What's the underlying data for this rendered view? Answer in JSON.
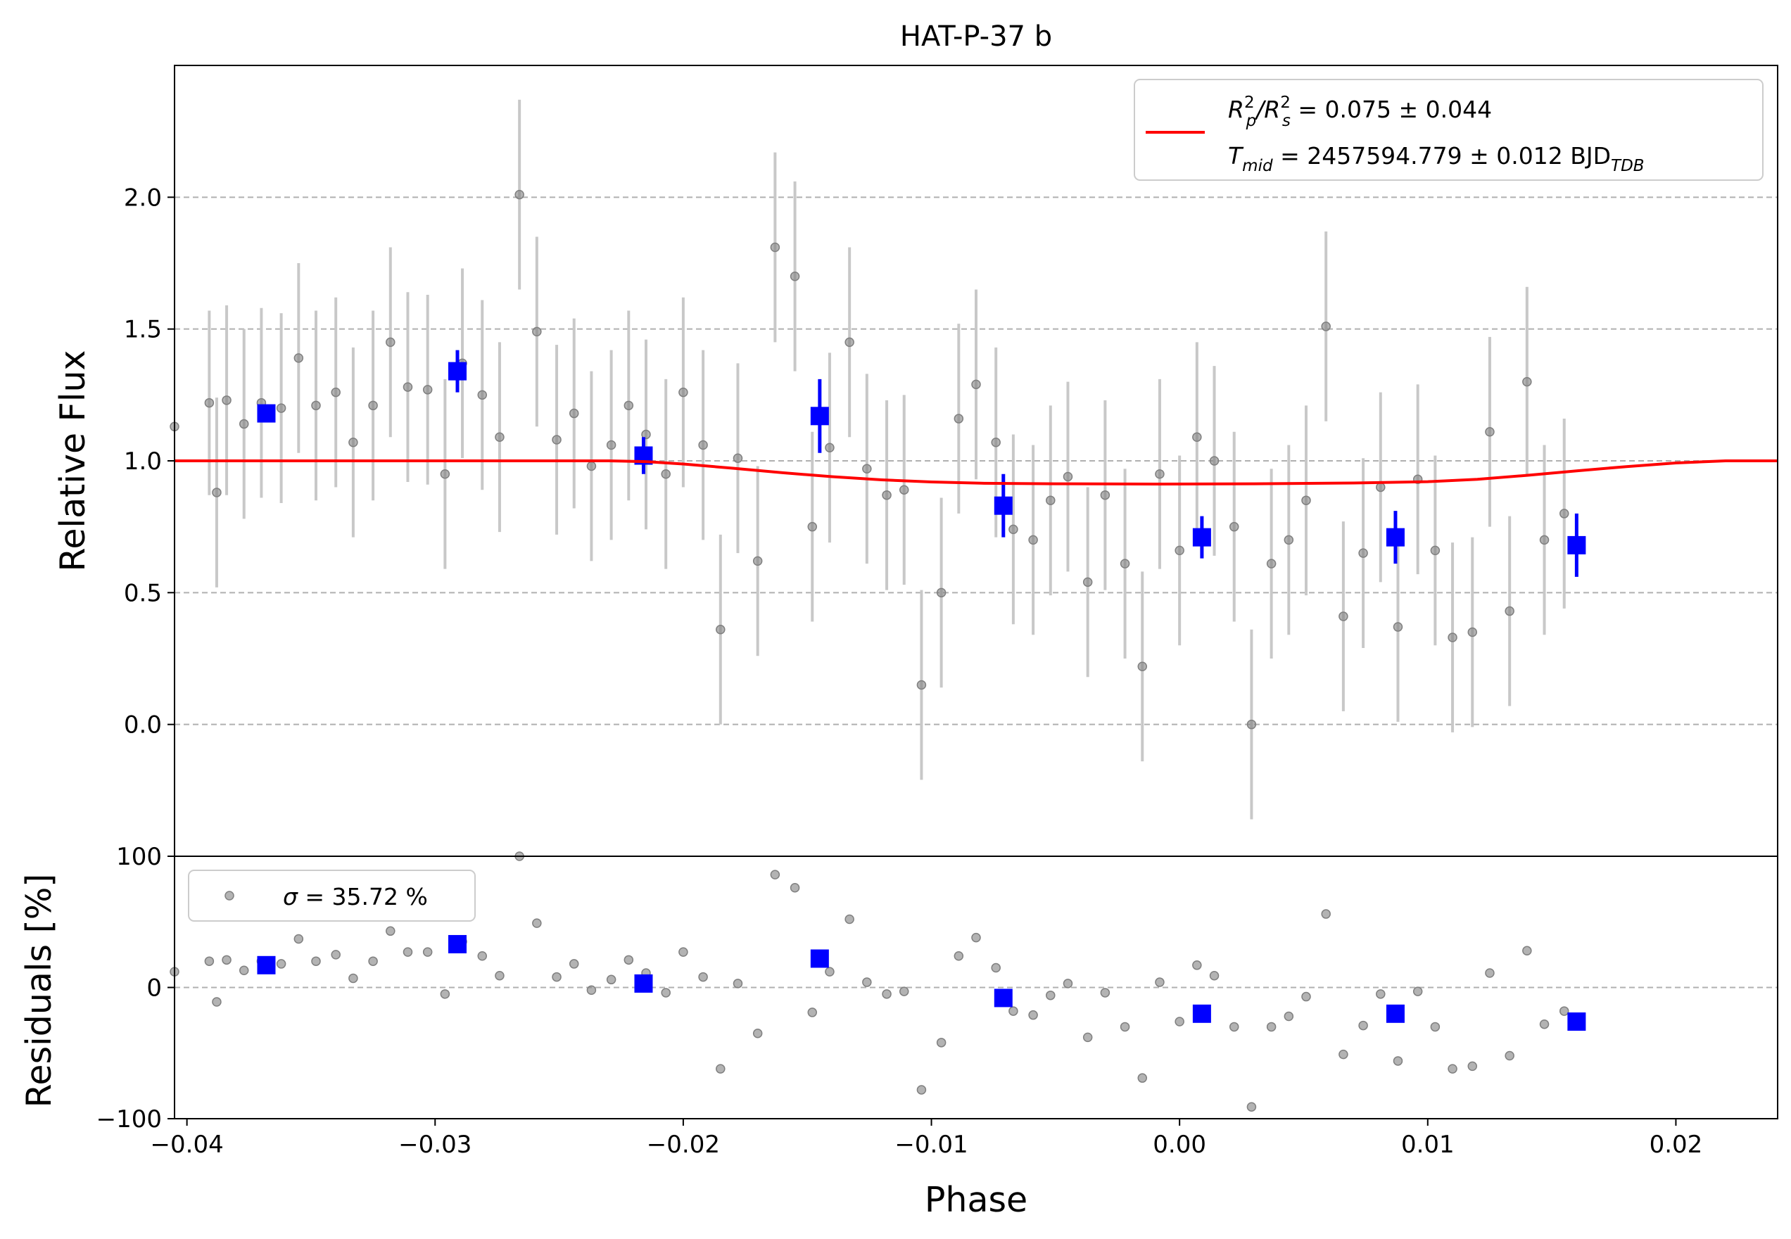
{
  "chart_data": [
    {
      "type": "scatter",
      "title": "HAT-P-37 b",
      "xlabel": "",
      "ylabel": "Relative Flux",
      "xlim": [
        -0.0405,
        0.0241
      ],
      "ylim": [
        -0.5,
        2.5
      ],
      "grid": "horizontal dashed",
      "legend_position": "top-right",
      "yticks": [
        {
          "value": 0.0,
          "label": "0.0"
        },
        {
          "value": 0.5,
          "label": "0.5"
        },
        {
          "value": 1.0,
          "label": "1.0"
        },
        {
          "value": 1.5,
          "label": "1.5"
        },
        {
          "value": 2.0,
          "label": "2.0"
        }
      ],
      "legend": {
        "rp_symbol_main": "R",
        "rp_sup1": "2",
        "rp_sub1": "p",
        "rp_slash": "/R",
        "rp_sup2": "2",
        "rp_sub2": "s",
        "rp_value": " = 0.075 ± 0.044",
        "tmid_symbol": "T",
        "tmid_sub": "mid",
        "tmid_value": " = 2457594.779 ± 0.012 BJD",
        "tmid_unit_sub": "TDB"
      },
      "colors": {
        "data": "#808080",
        "errorbar": "#c8c8c8",
        "binned": "#0000ff",
        "model": "#ff0000"
      },
      "series": [
        {
          "kind": "data-with-errorbars",
          "points": [
            [
              -0.0405,
              1.13,
              0.0
            ],
            [
              -0.0391,
              1.22,
              0.35
            ],
            [
              -0.0388,
              0.88,
              0.36
            ],
            [
              -0.0384,
              1.23,
              0.36
            ],
            [
              -0.0377,
              1.14,
              0.36
            ],
            [
              -0.037,
              1.22,
              0.36
            ],
            [
              -0.0362,
              1.2,
              0.36
            ],
            [
              -0.0355,
              1.39,
              0.36
            ],
            [
              -0.0348,
              1.21,
              0.36
            ],
            [
              -0.034,
              1.26,
              0.36
            ],
            [
              -0.0333,
              1.07,
              0.36
            ],
            [
              -0.0325,
              1.21,
              0.36
            ],
            [
              -0.0318,
              1.45,
              0.36
            ],
            [
              -0.0311,
              1.28,
              0.36
            ],
            [
              -0.0303,
              1.27,
              0.36
            ],
            [
              -0.0296,
              0.95,
              0.36
            ],
            [
              -0.0289,
              1.37,
              0.36
            ],
            [
              -0.0281,
              1.25,
              0.36
            ],
            [
              -0.0274,
              1.09,
              0.36
            ],
            [
              -0.0266,
              2.01,
              0.36
            ],
            [
              -0.0259,
              1.49,
              0.36
            ],
            [
              -0.0251,
              1.08,
              0.36
            ],
            [
              -0.0244,
              1.18,
              0.36
            ],
            [
              -0.0237,
              0.98,
              0.36
            ],
            [
              -0.0229,
              1.06,
              0.36
            ],
            [
              -0.0222,
              1.21,
              0.36
            ],
            [
              -0.0215,
              1.1,
              0.36
            ],
            [
              -0.0207,
              0.95,
              0.36
            ],
            [
              -0.02,
              1.26,
              0.36
            ],
            [
              -0.0192,
              1.06,
              0.36
            ],
            [
              -0.0185,
              0.36,
              0.36
            ],
            [
              -0.0178,
              1.01,
              0.36
            ],
            [
              -0.017,
              0.62,
              0.36
            ],
            [
              -0.0163,
              1.81,
              0.36
            ],
            [
              -0.0155,
              1.7,
              0.36
            ],
            [
              -0.0148,
              0.75,
              0.36
            ],
            [
              -0.0141,
              1.05,
              0.36
            ],
            [
              -0.0133,
              1.45,
              0.36
            ],
            [
              -0.0126,
              0.97,
              0.36
            ],
            [
              -0.0118,
              0.87,
              0.36
            ],
            [
              -0.0111,
              0.89,
              0.36
            ],
            [
              -0.0104,
              0.15,
              0.36
            ],
            [
              -0.0096,
              0.5,
              0.36
            ],
            [
              -0.0089,
              1.16,
              0.36
            ],
            [
              -0.0082,
              1.29,
              0.36
            ],
            [
              -0.0074,
              1.07,
              0.36
            ],
            [
              -0.0067,
              0.74,
              0.36
            ],
            [
              -0.0059,
              0.7,
              0.36
            ],
            [
              -0.0052,
              0.85,
              0.36
            ],
            [
              -0.0045,
              0.94,
              0.36
            ],
            [
              -0.0037,
              0.54,
              0.36
            ],
            [
              -0.003,
              0.87,
              0.36
            ],
            [
              -0.0022,
              0.61,
              0.36
            ],
            [
              -0.0015,
              0.22,
              0.36
            ],
            [
              -0.0008,
              0.95,
              0.36
            ],
            [
              0.0,
              0.66,
              0.36
            ],
            [
              0.0007,
              1.09,
              0.36
            ],
            [
              0.0014,
              1.0,
              0.36
            ],
            [
              0.0022,
              0.75,
              0.36
            ],
            [
              0.0029,
              0.0,
              0.36
            ],
            [
              0.0037,
              0.61,
              0.36
            ],
            [
              0.0044,
              0.7,
              0.36
            ],
            [
              0.0051,
              0.85,
              0.36
            ],
            [
              0.0059,
              1.51,
              0.36
            ],
            [
              0.0066,
              0.41,
              0.36
            ],
            [
              0.0074,
              0.65,
              0.36
            ],
            [
              0.0081,
              0.9,
              0.36
            ],
            [
              0.0088,
              0.37,
              0.36
            ],
            [
              0.0096,
              0.93,
              0.36
            ],
            [
              0.0103,
              0.66,
              0.36
            ],
            [
              0.011,
              0.33,
              0.36
            ],
            [
              0.0118,
              0.35,
              0.36
            ],
            [
              0.0125,
              1.11,
              0.36
            ],
            [
              0.0133,
              0.43,
              0.36
            ],
            [
              0.014,
              1.3,
              0.36
            ],
            [
              0.0147,
              0.7,
              0.36
            ],
            [
              0.0155,
              0.8,
              0.36
            ]
          ]
        },
        {
          "kind": "binned",
          "points": [
            [
              -0.0368,
              1.18,
              0.03
            ],
            [
              -0.0291,
              1.34,
              0.08
            ],
            [
              -0.0216,
              1.02,
              0.07
            ],
            [
              -0.0145,
              1.17,
              0.14
            ],
            [
              -0.0071,
              0.83,
              0.12
            ],
            [
              0.0009,
              0.71,
              0.08
            ],
            [
              0.0087,
              0.71,
              0.1
            ],
            [
              0.016,
              0.68,
              0.12
            ]
          ]
        },
        {
          "kind": "model",
          "name": "",
          "points": [
            [
              -0.0405,
              1.0
            ],
            [
              -0.023,
              1.0
            ],
            [
              -0.0215,
              0.997
            ],
            [
              -0.02,
              0.988
            ],
            [
              -0.018,
              0.972
            ],
            [
              -0.016,
              0.955
            ],
            [
              -0.014,
              0.94
            ],
            [
              -0.012,
              0.928
            ],
            [
              -0.01,
              0.92
            ],
            [
              -0.008,
              0.915
            ],
            [
              -0.005,
              0.913
            ],
            [
              -0.001,
              0.912
            ],
            [
              0.003,
              0.913
            ],
            [
              0.007,
              0.916
            ],
            [
              0.01,
              0.921
            ],
            [
              0.012,
              0.93
            ],
            [
              0.014,
              0.945
            ],
            [
              0.016,
              0.962
            ],
            [
              0.018,
              0.978
            ],
            [
              0.02,
              0.992
            ],
            [
              0.022,
              1.0
            ],
            [
              0.0241,
              1.0
            ]
          ]
        }
      ]
    },
    {
      "type": "scatter",
      "title": "",
      "xlabel": "Phase",
      "ylabel": "Residuals [%]",
      "xlim": [
        -0.0405,
        0.0241
      ],
      "ylim": [
        -100,
        100
      ],
      "grid": "horizontal dashed",
      "legend_position": "top-left",
      "legend": {
        "sigma_symbol": "σ",
        "sigma_value": " = 35.72 %"
      },
      "xticks": [
        {
          "value": -0.04,
          "label": "−0.04"
        },
        {
          "value": -0.03,
          "label": "−0.03"
        },
        {
          "value": -0.02,
          "label": "−0.02"
        },
        {
          "value": -0.01,
          "label": "−0.01"
        },
        {
          "value": 0.0,
          "label": "0.00"
        },
        {
          "value": 0.01,
          "label": "0.01"
        },
        {
          "value": 0.02,
          "label": "0.02"
        }
      ],
      "yticks": [
        {
          "value": 100,
          "label": "100"
        },
        {
          "value": 0,
          "label": "0"
        },
        {
          "value": -100,
          "label": "−100"
        }
      ],
      "series": [
        {
          "kind": "data",
          "points": [
            [
              -0.0405,
              12
            ],
            [
              -0.0391,
              20
            ],
            [
              -0.0388,
              -11
            ],
            [
              -0.0384,
              21
            ],
            [
              -0.0377,
              13
            ],
            [
              -0.037,
              20
            ],
            [
              -0.0362,
              18
            ],
            [
              -0.0355,
              37
            ],
            [
              -0.0348,
              20
            ],
            [
              -0.034,
              25
            ],
            [
              -0.0333,
              7
            ],
            [
              -0.0325,
              20
            ],
            [
              -0.0318,
              43
            ],
            [
              -0.0311,
              27
            ],
            [
              -0.0303,
              27
            ],
            [
              -0.0296,
              -5
            ],
            [
              -0.0289,
              35
            ],
            [
              -0.0281,
              24
            ],
            [
              -0.0274,
              9
            ],
            [
              -0.0266,
              100
            ],
            [
              -0.0259,
              49
            ],
            [
              -0.0251,
              8
            ],
            [
              -0.0244,
              18
            ],
            [
              -0.0237,
              -2
            ],
            [
              -0.0229,
              6
            ],
            [
              -0.0222,
              21
            ],
            [
              -0.0215,
              11
            ],
            [
              -0.0207,
              -4
            ],
            [
              -0.02,
              27
            ],
            [
              -0.0192,
              8
            ],
            [
              -0.0185,
              -62
            ],
            [
              -0.0178,
              3
            ],
            [
              -0.017,
              -35
            ],
            [
              -0.0163,
              86
            ],
            [
              -0.0155,
              76
            ],
            [
              -0.0148,
              -19
            ],
            [
              -0.0141,
              12
            ],
            [
              -0.0133,
              52
            ],
            [
              -0.0126,
              4
            ],
            [
              -0.0118,
              -5
            ],
            [
              -0.0111,
              -3
            ],
            [
              -0.0104,
              -78
            ],
            [
              -0.0096,
              -42
            ],
            [
              -0.0089,
              24
            ],
            [
              -0.0082,
              38
            ],
            [
              -0.0074,
              15
            ],
            [
              -0.0067,
              -18
            ],
            [
              -0.0059,
              -21
            ],
            [
              -0.0052,
              -6
            ],
            [
              -0.0045,
              3
            ],
            [
              -0.0037,
              -38
            ],
            [
              -0.003,
              -4
            ],
            [
              -0.0022,
              -30
            ],
            [
              -0.0015,
              -69
            ],
            [
              -0.0008,
              4
            ],
            [
              0.0,
              -26
            ],
            [
              0.0007,
              17
            ],
            [
              0.0014,
              9
            ],
            [
              0.0022,
              -30
            ],
            [
              0.0029,
              -91
            ],
            [
              0.0037,
              -30
            ],
            [
              0.0044,
              -22
            ],
            [
              0.0051,
              -7
            ],
            [
              0.0059,
              56
            ],
            [
              0.0066,
              -51
            ],
            [
              0.0074,
              -29
            ],
            [
              0.0081,
              -5
            ],
            [
              0.0088,
              -56
            ],
            [
              0.0096,
              -3
            ],
            [
              0.0103,
              -30
            ],
            [
              0.011,
              -62
            ],
            [
              0.0118,
              -60
            ],
            [
              0.0125,
              11
            ],
            [
              0.0133,
              -52
            ],
            [
              0.014,
              28
            ],
            [
              0.0147,
              -28
            ],
            [
              0.0155,
              -18
            ]
          ]
        },
        {
          "kind": "binned",
          "points": [
            [
              -0.0368,
              17
            ],
            [
              -0.0291,
              33
            ],
            [
              -0.0216,
              3
            ],
            [
              -0.0145,
              22
            ],
            [
              -0.0071,
              -8
            ],
            [
              0.0009,
              -20
            ],
            [
              0.0087,
              -20
            ],
            [
              0.016,
              -26
            ]
          ]
        }
      ]
    }
  ]
}
